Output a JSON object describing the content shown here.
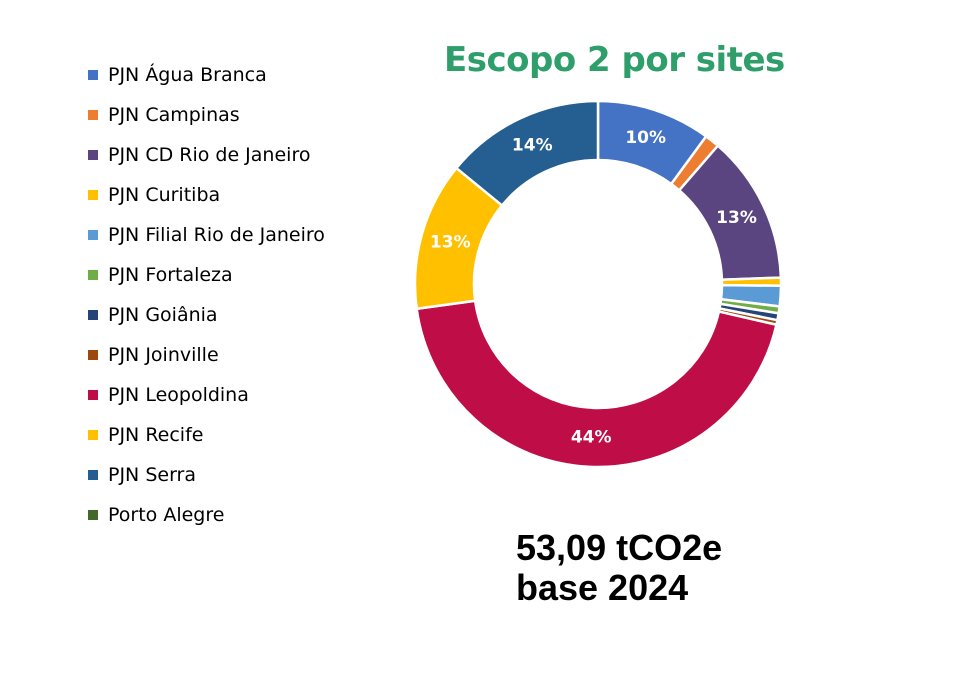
{
  "chart_data": {
    "type": "pie",
    "title": "Escopo 2 por sites",
    "legend_position": "left",
    "series": [
      {
        "name": "PJN Água Branca",
        "value": 10.0,
        "label": "10%",
        "color": "#4472C4"
      },
      {
        "name": "PJN Campinas",
        "value": 1.3,
        "label": "",
        "color": "#ED7D31"
      },
      {
        "name": "PJN CD Rio de Janeiro",
        "value": 13.0,
        "label": "13%",
        "color": "#5B4580"
      },
      {
        "name": "PJN Curitiba",
        "value": 0.7,
        "label": "",
        "color": "#FFC000"
      },
      {
        "name": "PJN Filial Rio de Janeiro",
        "value": 1.8,
        "label": "",
        "color": "#5B9BD5"
      },
      {
        "name": "PJN Fortaleza",
        "value": 0.6,
        "label": "",
        "color": "#70AD47"
      },
      {
        "name": "PJN Goiânia",
        "value": 0.6,
        "label": "",
        "color": "#264478"
      },
      {
        "name": "PJN Joinville",
        "value": 0.4,
        "label": "",
        "color": "#9E480E"
      },
      {
        "name": "PJN Leopoldina",
        "value": 44.0,
        "label": "44%",
        "color": "#BE0D47"
      },
      {
        "name": "PJN Recife",
        "value": 13.0,
        "label": "13%",
        "color": "#FFC000"
      },
      {
        "name": "PJN Serra",
        "value": 14.0,
        "label": "14%",
        "color": "#255E91"
      },
      {
        "name": "Porto Alegre",
        "value": 0.0,
        "label": "",
        "color": "#43682B"
      }
    ]
  },
  "styles": {
    "title_color": "#2E9E6B",
    "label_color": "#FFFFFF"
  },
  "summary": {
    "total_line": "53,09 tCO2e",
    "base_line": "base 2024"
  }
}
